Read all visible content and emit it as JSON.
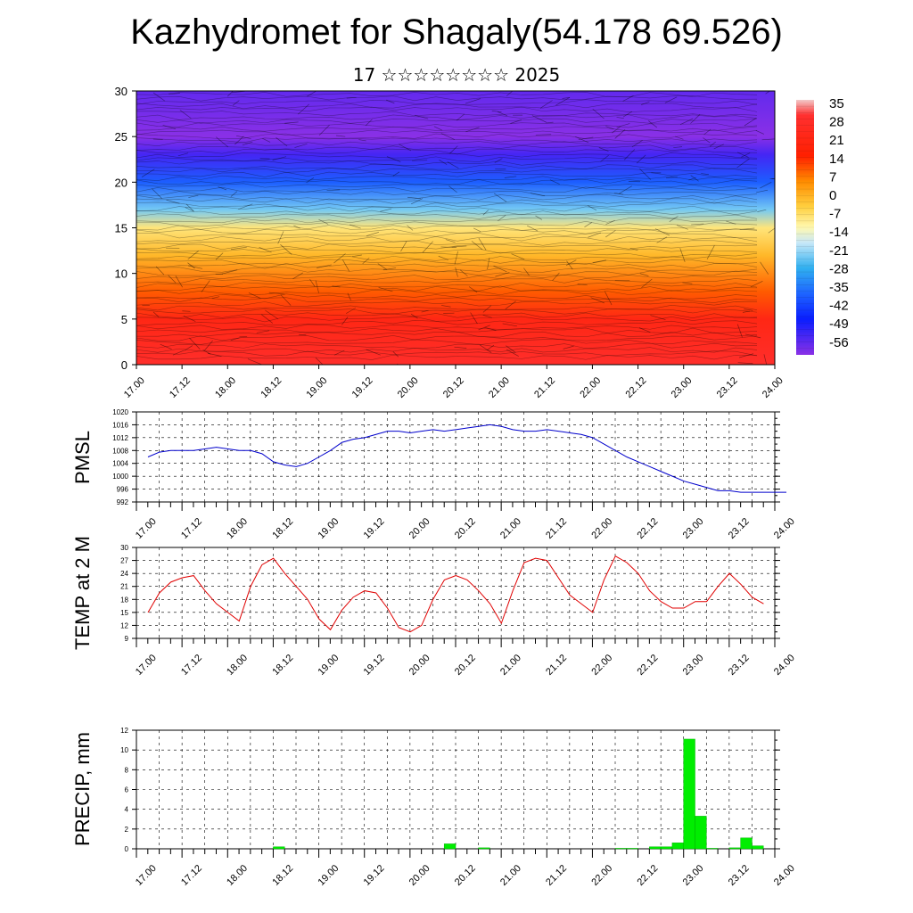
{
  "title": "Kazhydromet for Shagaly(54.178 69.526)",
  "subtitle": "17 ☆☆☆☆☆☆☆☆ 2025",
  "x_ticks": [
    "17.00",
    "17.12",
    "18.00",
    "18.12",
    "19.00",
    "19.12",
    "20.00",
    "20.12",
    "21.00",
    "21.12",
    "22.00",
    "22.12",
    "23.00",
    "23.12",
    "24.00"
  ],
  "colorbar": {
    "labels": [
      "35",
      "28",
      "21",
      "14",
      "7",
      "0",
      "-7",
      "-14",
      "-21",
      "-28",
      "-35",
      "-42",
      "-49",
      "-56"
    ],
    "stops": [
      {
        "at": 0.0,
        "color": "#f2c8c8"
      },
      {
        "at": 0.06,
        "color": "#ff3030"
      },
      {
        "at": 0.22,
        "color": "#ff2000"
      },
      {
        "at": 0.32,
        "color": "#ff8c00"
      },
      {
        "at": 0.42,
        "color": "#ffd040"
      },
      {
        "at": 0.5,
        "color": "#fff8b0"
      },
      {
        "at": 0.56,
        "color": "#c8e8f8"
      },
      {
        "at": 0.66,
        "color": "#30b0f0"
      },
      {
        "at": 0.76,
        "color": "#1e64ff"
      },
      {
        "at": 0.86,
        "color": "#0a1eff"
      },
      {
        "at": 1.0,
        "color": "#8a30e6"
      }
    ]
  },
  "chart_data": [
    {
      "type": "heatmap",
      "name": "cross-section",
      "xlabel": "",
      "ylabel": "",
      "ylim": [
        0,
        30
      ],
      "yticks": [
        "0",
        "5",
        "10",
        "15",
        "20",
        "25",
        "30"
      ],
      "color_by_height": [
        {
          "y": 0,
          "value": 28
        },
        {
          "y": 5,
          "value": 21
        },
        {
          "y": 8,
          "value": 10
        },
        {
          "y": 12,
          "value": 0
        },
        {
          "y": 15,
          "value": -7
        },
        {
          "y": 17,
          "value": -21
        },
        {
          "y": 20,
          "value": -35
        },
        {
          "y": 23,
          "value": -49
        },
        {
          "y": 25,
          "value": -56
        },
        {
          "y": 30,
          "value": -52
        }
      ]
    },
    {
      "type": "line",
      "ylabel": "PMSL",
      "ylim": [
        992,
        1020
      ],
      "yticks": [
        "992",
        "996",
        "1000",
        "1004",
        "1008",
        "1012",
        "1016",
        "1020"
      ],
      "color": "#0000cc",
      "x": [
        0,
        3,
        6,
        9,
        12,
        15,
        18,
        21,
        24,
        27,
        30,
        33,
        36,
        39,
        42,
        45,
        48,
        51,
        54,
        57,
        60,
        63,
        66,
        69,
        72,
        75,
        78,
        81,
        84,
        87,
        90,
        93,
        96,
        99,
        102,
        105,
        108,
        111,
        114,
        117,
        120,
        123,
        126,
        129,
        132,
        135,
        138,
        141,
        144,
        147,
        150,
        153,
        156,
        159,
        162,
        165,
        168
      ],
      "values": [
        1006,
        1007.5,
        1008,
        1008,
        1008,
        1008.5,
        1009,
        1008.5,
        1008,
        1008,
        1007,
        1004.5,
        1003.5,
        1003,
        1004,
        1006,
        1008,
        1010.5,
        1011.5,
        1012,
        1013,
        1014,
        1014,
        1013.5,
        1014,
        1014.5,
        1014,
        1014.5,
        1015,
        1015.5,
        1016,
        1015.5,
        1014.5,
        1014,
        1014,
        1014.5,
        1014,
        1013.5,
        1013,
        1012,
        1010,
        1008,
        1006,
        1004.5,
        1003,
        1001.5,
        1000,
        998.5,
        997.5,
        996.5,
        995.5,
        995.5,
        995,
        995,
        995,
        995,
        995
      ]
    },
    {
      "type": "line",
      "ylabel": "TEMP at 2 M",
      "ylim": [
        9,
        30
      ],
      "yticks": [
        "9",
        "12",
        "15",
        "18",
        "21",
        "24",
        "27",
        "30"
      ],
      "color": "#e00000",
      "x": [
        0,
        3,
        6,
        9,
        12,
        15,
        18,
        21,
        24,
        27,
        30,
        33,
        36,
        39,
        42,
        45,
        48,
        51,
        54,
        57,
        60,
        63,
        66,
        69,
        72,
        75,
        78,
        81,
        84,
        87,
        90,
        93,
        96,
        99,
        102,
        105,
        108,
        111,
        114,
        117,
        120,
        123,
        126,
        129,
        132,
        135,
        138,
        141,
        144,
        147,
        150,
        153,
        156,
        159,
        162
      ],
      "values": [
        15,
        19.5,
        22,
        23,
        23.5,
        20,
        17,
        15,
        13,
        21,
        26,
        27.5,
        24,
        21,
        18,
        13.5,
        11,
        15.5,
        18.5,
        20,
        19.5,
        16,
        11.5,
        10.5,
        12,
        18,
        22.5,
        23.5,
        22.5,
        20,
        17,
        12.5,
        20,
        26.5,
        27.5,
        27,
        23,
        19,
        17,
        15,
        22.5,
        28,
        26.5,
        24,
        20,
        17.5,
        16,
        16,
        17.5,
        17.5,
        21,
        24,
        21.5,
        18.5,
        17
      ]
    },
    {
      "type": "bar",
      "ylabel": "PRECIP, mm",
      "ylim": [
        0,
        12
      ],
      "yticks": [
        "0",
        "2",
        "4",
        "6",
        "8",
        "10",
        "12"
      ],
      "color": "#00ee00",
      "bin_hours": 3,
      "x_start": [
        36,
        81,
        90,
        126,
        129,
        135,
        138,
        141,
        144,
        147,
        150,
        156,
        159,
        162
      ],
      "values": [
        0.2,
        0.5,
        0.1,
        0.05,
        0.05,
        0.2,
        0.2,
        0.6,
        11.1,
        3.3,
        0.05,
        0.1,
        1.1,
        0.3
      ]
    }
  ]
}
